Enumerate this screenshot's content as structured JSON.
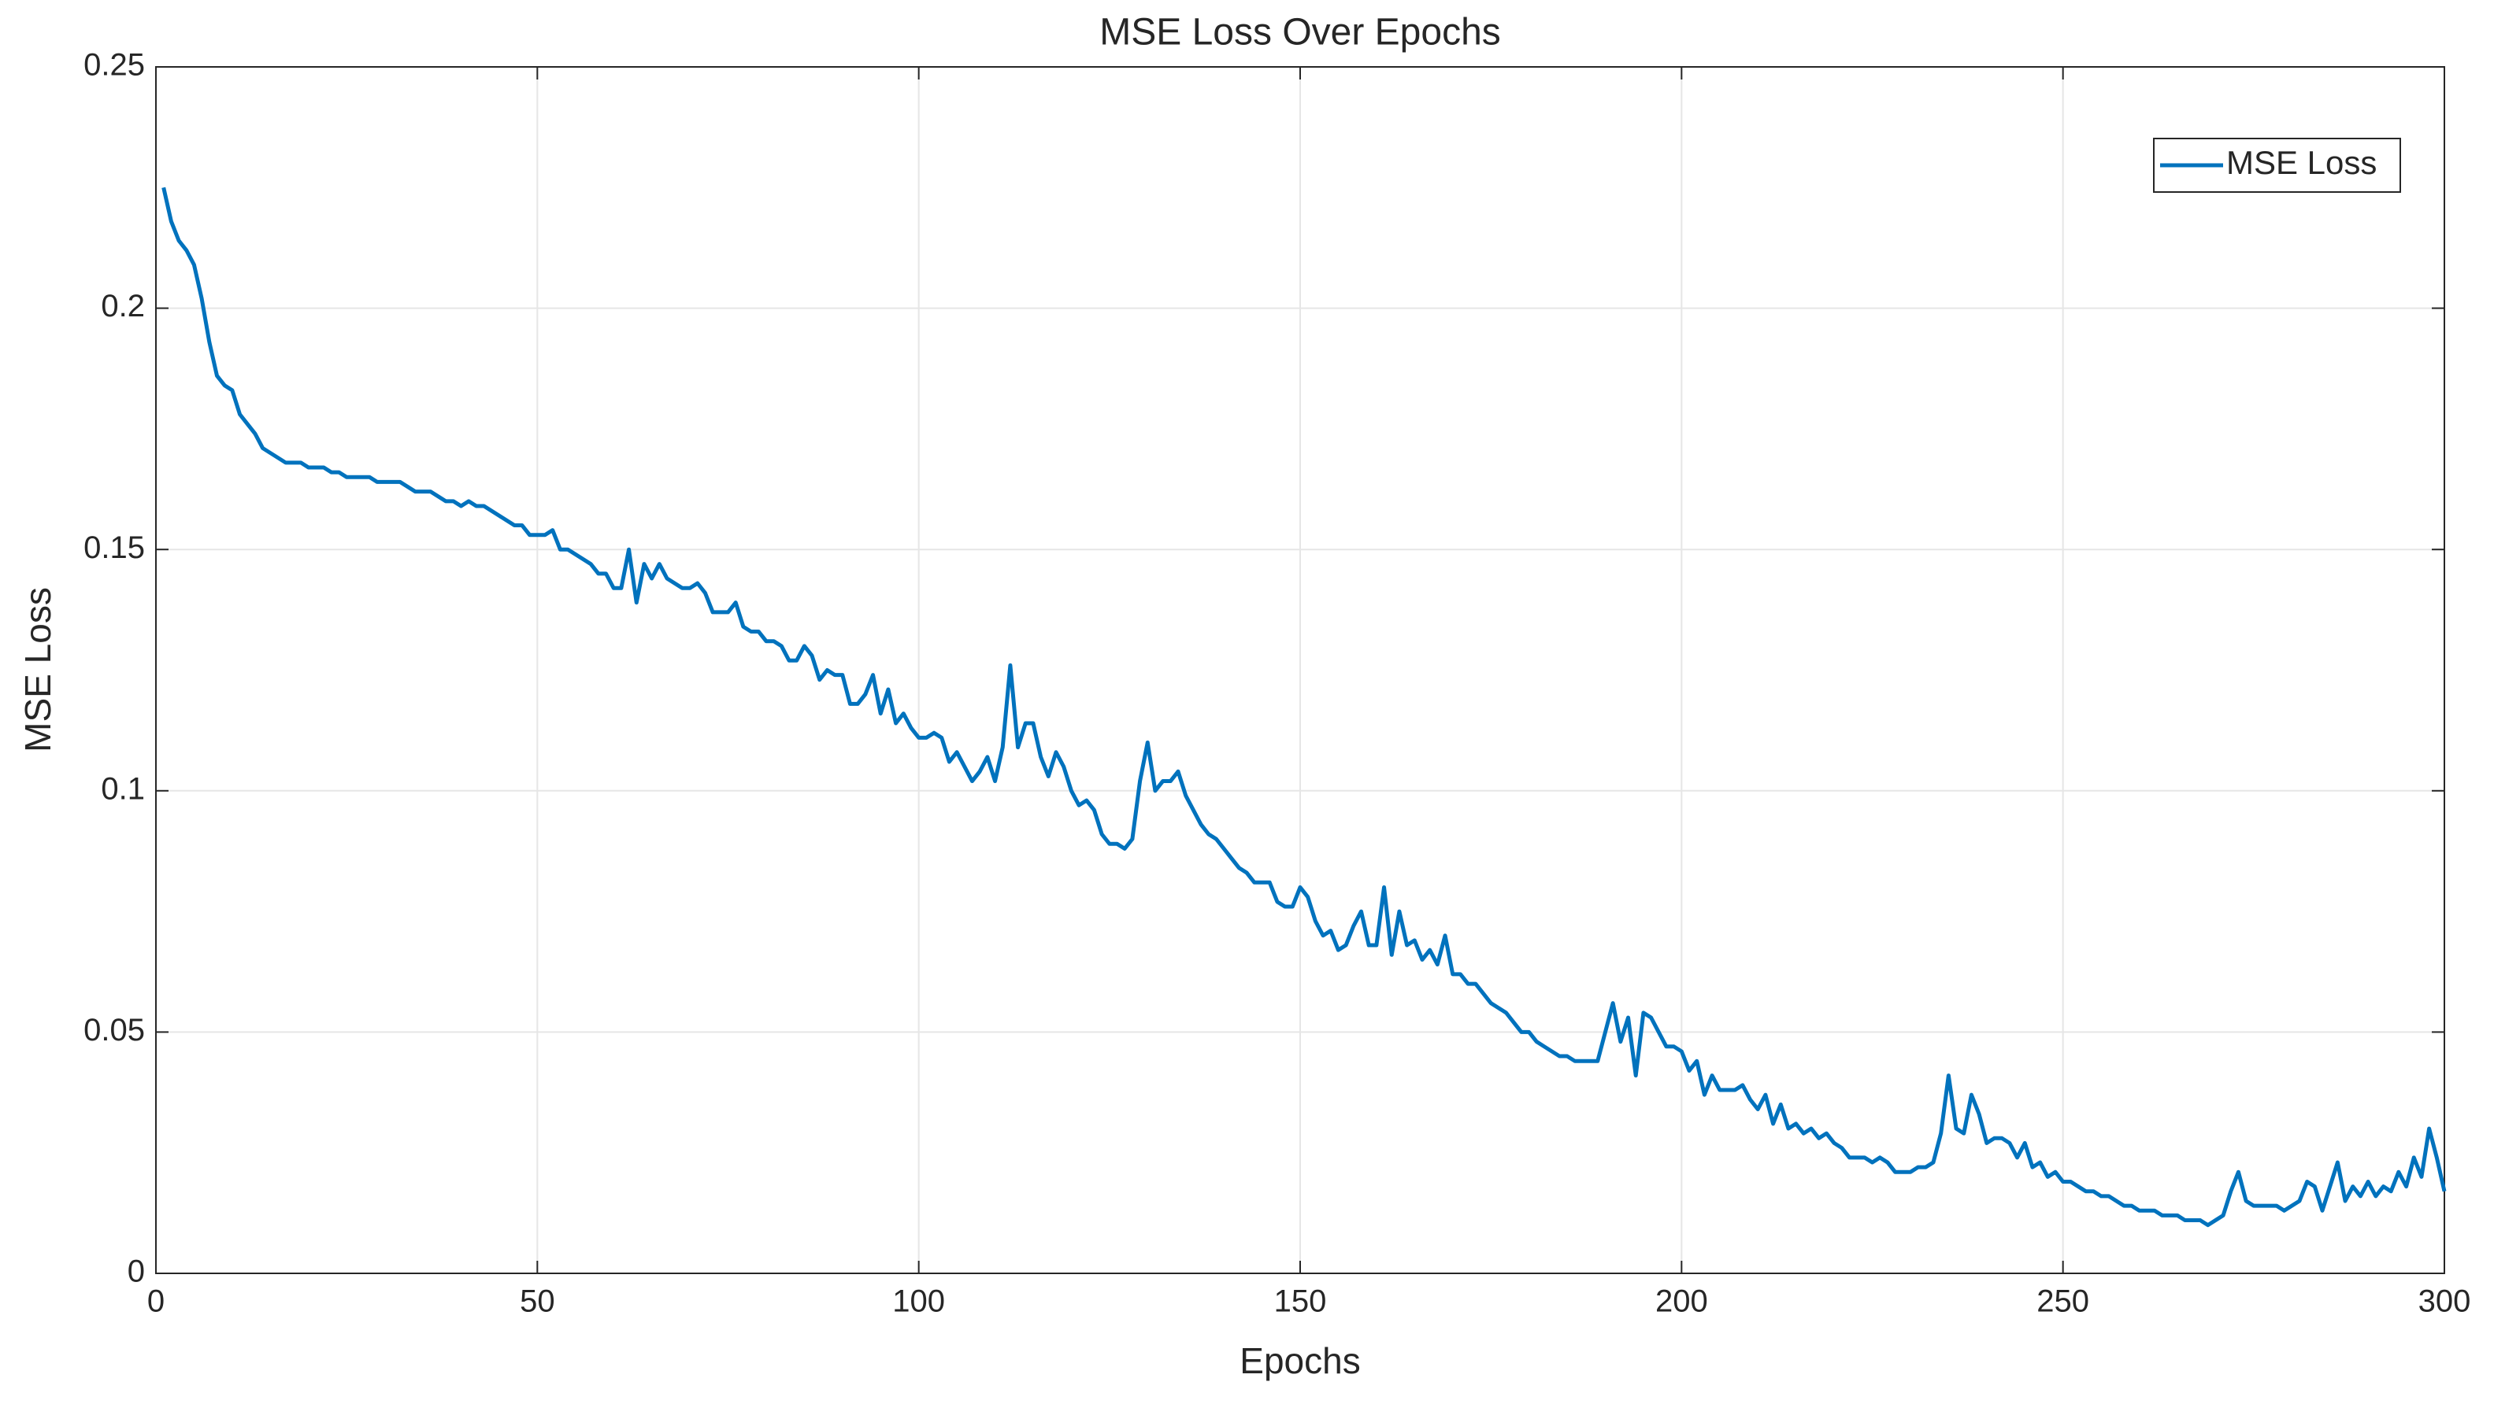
{
  "chart_data": {
    "type": "line",
    "title": "MSE Loss Over Epochs",
    "xlabel": "Epochs",
    "ylabel": "MSE Loss",
    "x": [
      1,
      2,
      3,
      4,
      5,
      6,
      7,
      8,
      9,
      10,
      11,
      12,
      13,
      14,
      15,
      16,
      17,
      18,
      19,
      20,
      21,
      22,
      23,
      24,
      25,
      26,
      27,
      28,
      29,
      30,
      31,
      32,
      33,
      34,
      35,
      36,
      37,
      38,
      39,
      40,
      41,
      42,
      43,
      44,
      45,
      46,
      47,
      48,
      49,
      50,
      51,
      52,
      53,
      54,
      55,
      56,
      57,
      58,
      59,
      60,
      61,
      62,
      63,
      64,
      65,
      66,
      67,
      68,
      69,
      70,
      71,
      72,
      73,
      74,
      75,
      76,
      77,
      78,
      79,
      80,
      81,
      82,
      83,
      84,
      85,
      86,
      87,
      88,
      89,
      90,
      91,
      92,
      93,
      94,
      95,
      96,
      97,
      98,
      99,
      100,
      101,
      102,
      103,
      104,
      105,
      106,
      107,
      108,
      109,
      110,
      111,
      112,
      113,
      114,
      115,
      116,
      117,
      118,
      119,
      120,
      121,
      122,
      123,
      124,
      125,
      126,
      127,
      128,
      129,
      130,
      131,
      132,
      133,
      134,
      135,
      136,
      137,
      138,
      139,
      140,
      141,
      142,
      143,
      144,
      145,
      146,
      147,
      148,
      149,
      150,
      151,
      152,
      153,
      154,
      155,
      156,
      157,
      158,
      159,
      160,
      161,
      162,
      163,
      164,
      165,
      166,
      167,
      168,
      169,
      170,
      171,
      172,
      173,
      174,
      175,
      176,
      177,
      178,
      179,
      180,
      181,
      182,
      183,
      184,
      185,
      186,
      187,
      188,
      189,
      190,
      191,
      192,
      193,
      194,
      195,
      196,
      197,
      198,
      199,
      200,
      201,
      202,
      203,
      204,
      205,
      206,
      207,
      208,
      209,
      210,
      211,
      212,
      213,
      214,
      215,
      216,
      217,
      218,
      219,
      220,
      221,
      222,
      223,
      224,
      225,
      226,
      227,
      228,
      229,
      230,
      231,
      232,
      233,
      234,
      235,
      236,
      237,
      238,
      239,
      240,
      241,
      242,
      243,
      244,
      245,
      246,
      247,
      248,
      249,
      250,
      251,
      252,
      253,
      254,
      255,
      256,
      257,
      258,
      259,
      260,
      261,
      262,
      263,
      264,
      265,
      266,
      267,
      268,
      269,
      270,
      271,
      272,
      273,
      274,
      275,
      276,
      277,
      278,
      279,
      280,
      281,
      282,
      283,
      284,
      285,
      286,
      287,
      288,
      289,
      290,
      291,
      292,
      293,
      294,
      295,
      296,
      297,
      298,
      299,
      300
    ],
    "series": [
      {
        "name": "MSE Loss",
        "color": "#0072bd",
        "values": [
          0.225,
          0.218,
          0.214,
          0.212,
          0.209,
          0.202,
          0.193,
          0.186,
          0.184,
          0.183,
          0.178,
          0.176,
          0.174,
          0.171,
          0.17,
          0.169,
          0.168,
          0.168,
          0.168,
          0.167,
          0.167,
          0.167,
          0.166,
          0.166,
          0.165,
          0.165,
          0.165,
          0.165,
          0.164,
          0.164,
          0.164,
          0.164,
          0.163,
          0.162,
          0.162,
          0.162,
          0.161,
          0.16,
          0.16,
          0.159,
          0.16,
          0.159,
          0.159,
          0.158,
          0.157,
          0.156,
          0.155,
          0.155,
          0.153,
          0.153,
          0.153,
          0.154,
          0.15,
          0.15,
          0.149,
          0.148,
          0.147,
          0.145,
          0.145,
          0.142,
          0.142,
          0.15,
          0.139,
          0.147,
          0.144,
          0.147,
          0.144,
          0.143,
          0.142,
          0.142,
          0.143,
          0.141,
          0.137,
          0.137,
          0.137,
          0.139,
          0.134,
          0.133,
          0.133,
          0.131,
          0.131,
          0.13,
          0.127,
          0.127,
          0.13,
          0.128,
          0.123,
          0.125,
          0.124,
          0.124,
          0.118,
          0.118,
          0.12,
          0.124,
          0.116,
          0.121,
          0.114,
          0.116,
          0.113,
          0.111,
          0.111,
          0.112,
          0.111,
          0.106,
          0.108,
          0.105,
          0.102,
          0.104,
          0.107,
          0.102,
          0.109,
          0.126,
          0.109,
          0.114,
          0.114,
          0.107,
          0.103,
          0.108,
          0.105,
          0.1,
          0.097,
          0.098,
          0.096,
          0.091,
          0.089,
          0.089,
          0.088,
          0.09,
          0.102,
          0.11,
          0.1,
          0.102,
          0.102,
          0.104,
          0.099,
          0.096,
          0.093,
          0.091,
          0.09,
          0.088,
          0.086,
          0.084,
          0.083,
          0.081,
          0.081,
          0.081,
          0.077,
          0.076,
          0.076,
          0.08,
          0.078,
          0.073,
          0.07,
          0.071,
          0.067,
          0.068,
          0.072,
          0.075,
          0.068,
          0.068,
          0.08,
          0.066,
          0.075,
          0.068,
          0.069,
          0.065,
          0.067,
          0.064,
          0.07,
          0.062,
          0.062,
          0.06,
          0.06,
          0.058,
          0.056,
          0.055,
          0.054,
          0.052,
          0.05,
          0.05,
          0.048,
          0.047,
          0.046,
          0.045,
          0.045,
          0.044,
          0.044,
          0.044,
          0.044,
          0.05,
          0.056,
          0.048,
          0.053,
          0.041,
          0.054,
          0.053,
          0.05,
          0.047,
          0.047,
          0.046,
          0.042,
          0.044,
          0.037,
          0.041,
          0.038,
          0.038,
          0.038,
          0.039,
          0.036,
          0.034,
          0.037,
          0.031,
          0.035,
          0.03,
          0.031,
          0.029,
          0.03,
          0.028,
          0.029,
          0.027,
          0.026,
          0.024,
          0.024,
          0.024,
          0.023,
          0.024,
          0.023,
          0.021,
          0.021,
          0.021,
          0.022,
          0.022,
          0.023,
          0.029,
          0.041,
          0.03,
          0.029,
          0.037,
          0.033,
          0.027,
          0.028,
          0.028,
          0.027,
          0.024,
          0.027,
          0.022,
          0.023,
          0.02,
          0.021,
          0.019,
          0.019,
          0.018,
          0.017,
          0.017,
          0.016,
          0.016,
          0.015,
          0.014,
          0.014,
          0.013,
          0.013,
          0.013,
          0.012,
          0.012,
          0.012,
          0.011,
          0.011,
          0.011,
          0.01,
          0.011,
          0.012,
          0.017,
          0.021,
          0.015,
          0.014,
          0.014,
          0.014,
          0.014,
          0.013,
          0.014,
          0.015,
          0.019,
          0.018,
          0.013,
          0.018,
          0.023,
          0.015,
          0.018,
          0.016,
          0.019,
          0.016,
          0.018,
          0.017,
          0.021,
          0.018,
          0.024,
          0.02,
          0.03,
          0.024,
          0.017
        ]
      }
    ],
    "xlim": [
      0,
      300
    ],
    "ylim": [
      0,
      0.25
    ],
    "xticks": [
      0,
      50,
      100,
      150,
      200,
      250,
      300
    ],
    "yticks": [
      0,
      0.05,
      0.1,
      0.15,
      0.2,
      0.25
    ],
    "grid": true,
    "legend": "northeast"
  }
}
